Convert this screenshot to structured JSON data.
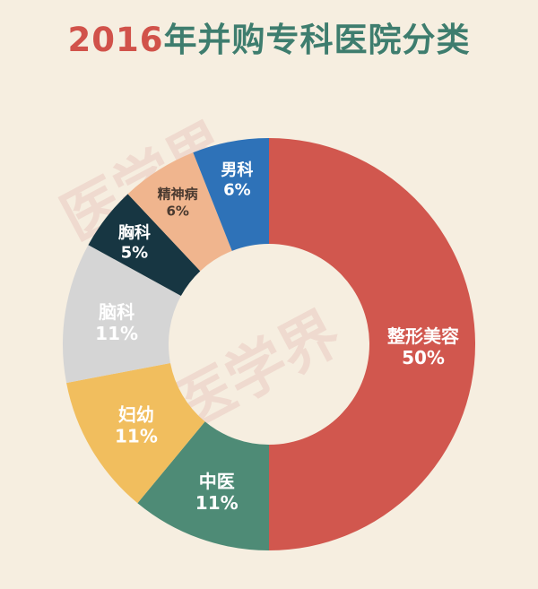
{
  "title": {
    "year": "2016",
    "rest": "年并购专科医院分类"
  },
  "watermark": "医学界",
  "chart_data": {
    "type": "pie",
    "donut": true,
    "title": "2016年并购专科医院分类",
    "categories": [
      "整形美容",
      "中医",
      "妇幼",
      "脑科",
      "胸科",
      "精神病",
      "男科"
    ],
    "values": [
      50,
      11,
      11,
      11,
      5,
      6,
      6
    ],
    "value_labels": [
      "50%",
      "11%",
      "11%",
      "11%",
      "5%",
      "6%",
      "6%"
    ],
    "colors": [
      "#d1574e",
      "#4e8b76",
      "#f1be5e",
      "#d5d5d5",
      "#173642",
      "#f0b58e",
      "#2e72b8"
    ],
    "label_colors": [
      "#ffffff",
      "#ffffff",
      "#ffffff",
      "#ffffff",
      "#ffffff",
      "#4a3a30",
      "#ffffff"
    ]
  }
}
